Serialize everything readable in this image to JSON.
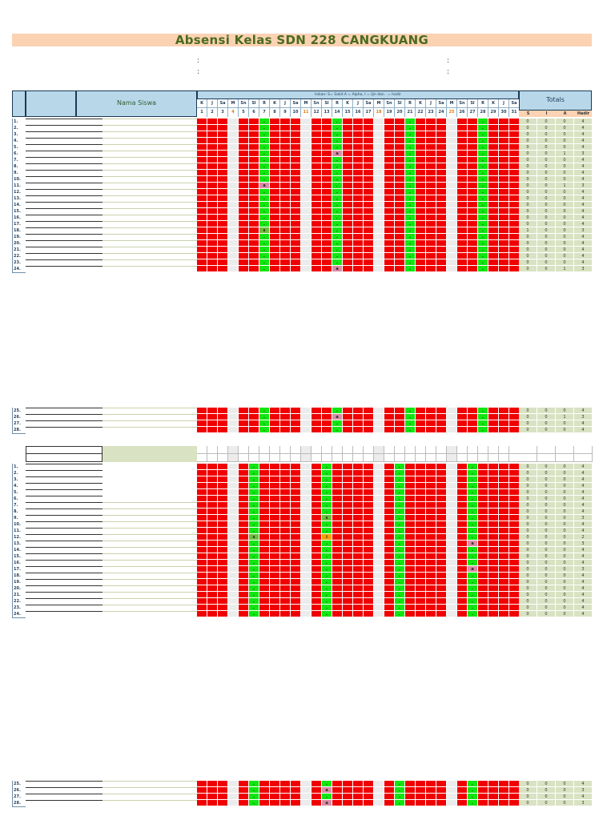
{
  "title": "Absensi Kelas  SDN 228 CANGKUANG",
  "colons": [
    ":",
    ":",
    ":",
    ":"
  ],
  "header": {
    "nama_siswa": "Nama Siswa",
    "isikan": "Isikan:  S= Sakit  A = Alpha,  I = Ijin dan . = hadir",
    "totals": "Totals",
    "day_names": [
      "K",
      "J",
      "Sa",
      "M",
      "Sn",
      "Sl",
      "R",
      "K",
      "J",
      "Sa",
      "M",
      "Sn",
      "Sl",
      "R",
      "K",
      "J",
      "Sa",
      "M",
      "Sn",
      "Sl",
      "R",
      "K",
      "J",
      "Sa",
      "M",
      "Sn",
      "Sl",
      "R",
      "K",
      "J",
      "Sa"
    ],
    "dates": [
      "1",
      "2",
      "3",
      "4",
      "5",
      "6",
      "7",
      "8",
      "9",
      "10",
      "11",
      "12",
      "13",
      "14",
      "15",
      "16",
      "17",
      "18",
      "19",
      "20",
      "21",
      "22",
      "23",
      "24",
      "25",
      "26",
      "27",
      "28",
      "29",
      "30",
      "31"
    ],
    "total_cols": [
      "S",
      "I",
      "A",
      "Hadir"
    ]
  },
  "colors": {
    "absent": "#f00000",
    "present": "#11e611",
    "holiday": "#ececec",
    "name_bg": "#d9e2c2",
    "title_bg": "#fbd2b2"
  },
  "block1_rows": [
    {
      "n": "1.",
      "t": [
        "0",
        "0",
        "0",
        "4"
      ]
    },
    {
      "n": "2.",
      "t": [
        "0",
        "0",
        "0",
        "4"
      ]
    },
    {
      "n": "3.",
      "t": [
        "0",
        "0",
        "0",
        "4"
      ]
    },
    {
      "n": "4.",
      "t": [
        "0",
        "0",
        "0",
        "4"
      ]
    },
    {
      "n": "5.",
      "t": [
        "0",
        "0",
        "0",
        "4"
      ]
    },
    {
      "n": "6.",
      "t": [
        "0",
        "0",
        "1",
        "3"
      ]
    },
    {
      "n": "7.",
      "t": [
        "0",
        "0",
        "0",
        "4"
      ]
    },
    {
      "n": "8.",
      "t": [
        "0",
        "0",
        "0",
        "4"
      ]
    },
    {
      "n": "9.",
      "t": [
        "0",
        "0",
        "0",
        "4"
      ]
    },
    {
      "n": "10.",
      "t": [
        "0",
        "0",
        "0",
        "4"
      ]
    },
    {
      "n": "11.",
      "t": [
        "0",
        "0",
        "1",
        "3"
      ]
    },
    {
      "n": "12.",
      "t": [
        "0",
        "0",
        "0",
        "4"
      ]
    },
    {
      "n": "13.",
      "t": [
        "0",
        "0",
        "0",
        "4"
      ]
    },
    {
      "n": "14.",
      "t": [
        "0",
        "0",
        "0",
        "4"
      ]
    },
    {
      "n": "15.",
      "t": [
        "0",
        "0",
        "0",
        "4"
      ]
    },
    {
      "n": "16.",
      "t": [
        "0",
        "0",
        "0",
        "4"
      ]
    },
    {
      "n": "17.",
      "t": [
        "0",
        "0",
        "0",
        "4"
      ]
    },
    {
      "n": "18.",
      "t": [
        "1",
        "0",
        "0",
        "3"
      ]
    },
    {
      "n": "19.",
      "t": [
        "0",
        "0",
        "0",
        "4"
      ]
    },
    {
      "n": "20.",
      "t": [
        "0",
        "0",
        "0",
        "4"
      ]
    },
    {
      "n": "21.",
      "t": [
        "0",
        "0",
        "0",
        "4"
      ]
    },
    {
      "n": "22.",
      "t": [
        "0",
        "0",
        "0",
        "4"
      ]
    },
    {
      "n": "23.",
      "t": [
        "0",
        "0",
        "0",
        "4"
      ]
    },
    {
      "n": "24.",
      "t": [
        "0",
        "0",
        "1",
        "3"
      ]
    }
  ],
  "block2_rows": [
    {
      "n": "25.",
      "t": [
        "0",
        "0",
        "0",
        "4"
      ]
    },
    {
      "n": "26.",
      "t": [
        "0",
        "0",
        "1",
        "3"
      ]
    },
    {
      "n": "27.",
      "t": [
        "0",
        "0",
        "0",
        "4"
      ]
    },
    {
      "n": "28.",
      "t": [
        "0",
        "0",
        "0",
        "4"
      ]
    }
  ],
  "block3_rows": [
    {
      "n": "1.",
      "t": [
        "0",
        "0",
        "0",
        "4"
      ]
    },
    {
      "n": "2.",
      "t": [
        "0",
        "0",
        "0",
        "4"
      ]
    },
    {
      "n": "3.",
      "t": [
        "0",
        "0",
        "0",
        "4"
      ]
    },
    {
      "n": "4.",
      "t": [
        "0",
        "0",
        "0",
        "4"
      ]
    },
    {
      "n": "5.",
      "t": [
        "0",
        "0",
        "0",
        "4"
      ]
    },
    {
      "n": "6.",
      "t": [
        "0",
        "0",
        "0",
        "4"
      ]
    },
    {
      "n": "7.",
      "t": [
        "0",
        "0",
        "0",
        "4"
      ]
    },
    {
      "n": "8.",
      "t": [
        "0",
        "0",
        "0",
        "4"
      ]
    },
    {
      "n": "9.",
      "t": [
        "0",
        "0",
        "0",
        "3"
      ]
    },
    {
      "n": "10.",
      "t": [
        "0",
        "0",
        "0",
        "4"
      ]
    },
    {
      "n": "11.",
      "t": [
        "0",
        "0",
        "0",
        "4"
      ]
    },
    {
      "n": "12.",
      "t": [
        "0",
        "0",
        "0",
        "2"
      ]
    },
    {
      "n": "13.",
      "t": [
        "0",
        "0",
        "0",
        "3"
      ]
    },
    {
      "n": "14.",
      "t": [
        "0",
        "0",
        "0",
        "4"
      ]
    },
    {
      "n": "15.",
      "t": [
        "0",
        "0",
        "0",
        "4"
      ]
    },
    {
      "n": "16.",
      "t": [
        "0",
        "0",
        "0",
        "4"
      ]
    },
    {
      "n": "17.",
      "t": [
        "0",
        "0",
        "0",
        "3"
      ]
    },
    {
      "n": "18.",
      "t": [
        "0",
        "0",
        "0",
        "4"
      ]
    },
    {
      "n": "19.",
      "t": [
        "0",
        "0",
        "0",
        "4"
      ]
    },
    {
      "n": "20.",
      "t": [
        "0",
        "0",
        "0",
        "4"
      ]
    },
    {
      "n": "21.",
      "t": [
        "0",
        "0",
        "0",
        "4"
      ]
    },
    {
      "n": "22.",
      "t": [
        "0",
        "0",
        "0",
        "4"
      ]
    },
    {
      "n": "23.",
      "t": [
        "0",
        "0",
        "0",
        "4"
      ]
    },
    {
      "n": "24.",
      "t": [
        "0",
        "0",
        "0",
        "4"
      ]
    }
  ],
  "block4_rows": [
    {
      "n": "25.",
      "t": [
        "0",
        "0",
        "0",
        "4"
      ]
    },
    {
      "n": "26.",
      "t": [
        "0",
        "0",
        "0",
        "3"
      ]
    },
    {
      "n": "27.",
      "t": [
        "0",
        "0",
        "0",
        "4"
      ]
    },
    {
      "n": "28.",
      "t": [
        "0",
        "0",
        "0",
        "3"
      ]
    }
  ],
  "marks": {
    "a": "a",
    "s": "s",
    "i": "i",
    "dot": "."
  }
}
